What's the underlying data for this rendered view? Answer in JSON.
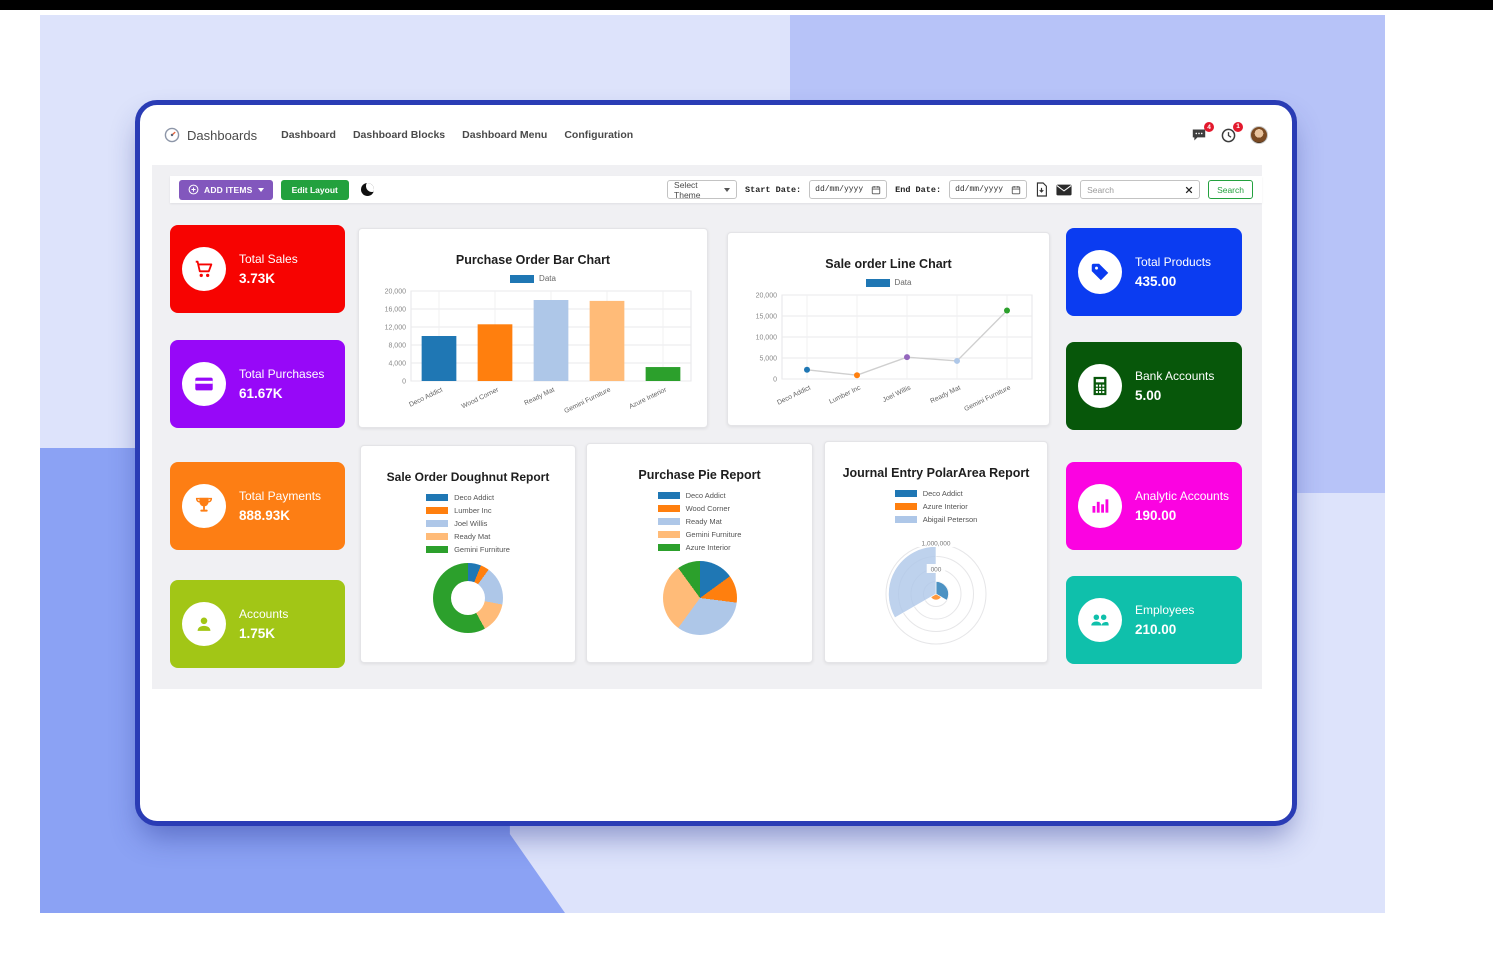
{
  "nav": {
    "brand": "Dashboards",
    "items": [
      {
        "label": "Dashboard"
      },
      {
        "label": "Dashboard Blocks"
      },
      {
        "label": "Dashboard Menu"
      },
      {
        "label": "Configuration"
      }
    ],
    "message_badge": "4",
    "activity_badge": "1"
  },
  "toolbar": {
    "add_items_label": "ADD ITEMS",
    "edit_layout_label": "Edit Layout",
    "select_theme_label": "Select Theme",
    "start_date_label": "Start Date:",
    "end_date_label": "End Date:",
    "date_placeholder": "dd/mm/yyyy",
    "search_placeholder": "Search",
    "search_button_label": "Search"
  },
  "icons": {
    "brand": "gauge-logo-icon",
    "dark_mode": "moon-icon",
    "messages": "chat-icon",
    "activities": "clock-icon",
    "export": "pdf-document-icon",
    "email": "envelope-icon",
    "clear_search": "x-icon",
    "calendar": "calendar-icon"
  },
  "kpis_left": [
    {
      "label": "Total Sales",
      "value": "3.73K",
      "color": "#f70301",
      "icon": "shopping-cart-icon"
    },
    {
      "label": "Total Purchases",
      "value": "61.67K",
      "color": "#9708f8",
      "icon": "credit-card-icon"
    },
    {
      "label": "Total Payments",
      "value": "888.93K",
      "color": "#fd7e14",
      "icon": "trophy-icon"
    },
    {
      "label": "Accounts",
      "value": "1.75K",
      "color": "#a2c616",
      "icon": "user-icon"
    }
  ],
  "kpis_right": [
    {
      "label": "Total Products",
      "value": "435.00",
      "color": "#0b3cf1",
      "icon": "tag-icon"
    },
    {
      "label": "Bank Accounts",
      "value": "5.00",
      "color": "#07570a",
      "icon": "calculator-icon"
    },
    {
      "label": "Analytic Accounts",
      "value": "190.00",
      "color": "#fb03e1",
      "icon": "bar-chart-icon"
    },
    {
      "label": "Employees",
      "value": "210.00",
      "color": "#0fc0ab",
      "icon": "users-icon"
    }
  ],
  "chart_data": [
    {
      "type": "bar",
      "title": "Purchase Order Bar Chart",
      "legend": [
        "Data"
      ],
      "legend_color": "#1f77b4",
      "categories": [
        "Deco Addict",
        "Wood Corner",
        "Ready Mat",
        "Gemini Furniture",
        "Azure Interior"
      ],
      "values": [
        10000,
        12600,
        18000,
        17800,
        3100
      ],
      "colors": [
        "#1f77b4",
        "#ff7f0e",
        "#aec7e8",
        "#ffbb78",
        "#2ca02c"
      ],
      "ylim": [
        0,
        20000
      ],
      "yticks": [
        "0",
        "4,000",
        "8,000",
        "12,000",
        "16,000",
        "20,000"
      ],
      "grid": true,
      "legend_position": "top"
    },
    {
      "type": "line",
      "title": "Sale order Line Chart",
      "legend": [
        "Data"
      ],
      "legend_color": "#1f77b4",
      "categories": [
        "Deco Addict",
        "Lumber Inc",
        "Joel Willis",
        "Ready Mat",
        "Gemini Furniture"
      ],
      "values": [
        2200,
        900,
        5200,
        4300,
        16300
      ],
      "point_colors": [
        "#1f77b4",
        "#ff7f0e",
        "#9467bd",
        "#aec7e8",
        "#2ca02c"
      ],
      "line_color": "#cfcfcf",
      "ylim": [
        0,
        20000
      ],
      "yticks": [
        "0",
        "5,000",
        "10,000",
        "15,000",
        "20,000"
      ],
      "grid": true,
      "legend_position": "top"
    },
    {
      "type": "doughnut",
      "title": "Sale Order Doughnut Report",
      "labels": [
        "Deco Addict",
        "Lumber Inc",
        "Joel Willis",
        "Ready Mat",
        "Gemini Furniture"
      ],
      "values": [
        6,
        4,
        18,
        14,
        58
      ],
      "colors": [
        "#1f77b4",
        "#ff7f0e",
        "#aec7e8",
        "#ffbb78",
        "#2ca02c"
      ],
      "legend_position": "top"
    },
    {
      "type": "pie",
      "title": "Purchase Pie Report",
      "labels": [
        "Deco Addict",
        "Wood Corner",
        "Ready Mat",
        "Gemini Furniture",
        "Azure Interior"
      ],
      "values": [
        15,
        12,
        33,
        30,
        10
      ],
      "colors": [
        "#1f77b4",
        "#ff7f0e",
        "#aec7e8",
        "#ffbb78",
        "#2ca02c"
      ],
      "legend_position": "top"
    },
    {
      "type": "polarArea",
      "title": "Journal Entry PolarArea Report",
      "labels": [
        "Deco Addict",
        "Azure Interior",
        "Abigail Peterson"
      ],
      "values": [
        250000,
        120000,
        950000
      ],
      "colors": [
        "#1f77b4",
        "#ff7f0e",
        "#aec7e8"
      ],
      "rmax": 1000000,
      "rtick_labels": [
        "1,000,000",
        "000"
      ],
      "legend_position": "top"
    }
  ]
}
